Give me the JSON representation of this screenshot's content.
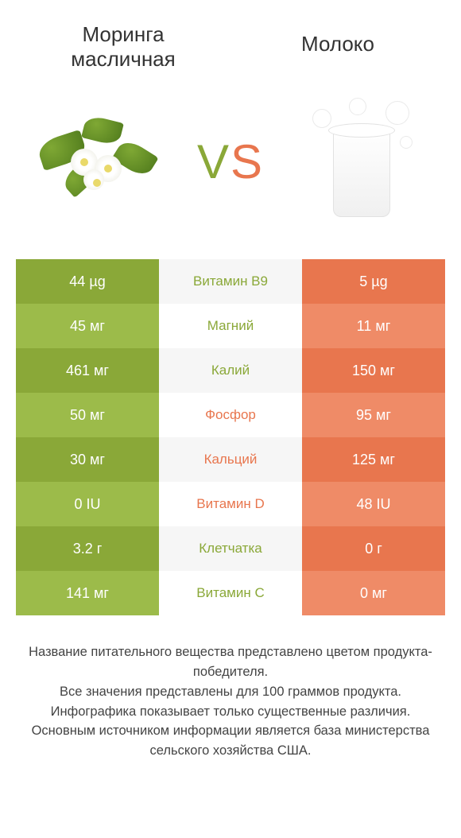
{
  "titles": {
    "left": "Моринга масличная",
    "right": "Молоко"
  },
  "vs": {
    "v": "V",
    "s": "S"
  },
  "colors": {
    "left_dark": "#8aa838",
    "left_light": "#9cbb4a",
    "right_dark": "#e8764e",
    "right_light": "#ef8b67",
    "mid_left_winner": "#8aa838",
    "mid_right_winner": "#e8764e"
  },
  "rows": [
    {
      "nutrient": "Витамин B9",
      "left": "44 µg",
      "right": "5 µg",
      "winner": "left"
    },
    {
      "nutrient": "Магний",
      "left": "45 мг",
      "right": "11 мг",
      "winner": "left"
    },
    {
      "nutrient": "Калий",
      "left": "461 мг",
      "right": "150 мг",
      "winner": "left"
    },
    {
      "nutrient": "Фосфор",
      "left": "50 мг",
      "right": "95 мг",
      "winner": "right"
    },
    {
      "nutrient": "Кальций",
      "left": "30 мг",
      "right": "125 мг",
      "winner": "right"
    },
    {
      "nutrient": "Витамин D",
      "left": "0 IU",
      "right": "48 IU",
      "winner": "right"
    },
    {
      "nutrient": "Клетчатка",
      "left": "3.2 г",
      "right": "0 г",
      "winner": "left"
    },
    {
      "nutrient": "Витамин C",
      "left": "141 мг",
      "right": "0 мг",
      "winner": "left"
    }
  ],
  "footer": {
    "l1": "Название питательного вещества представлено цветом продукта-победителя.",
    "l2": "Все значения представлены для 100 граммов продукта.",
    "l3": "Инфографика показывает только существенные различия.",
    "l4": "Основным источником информации является база министерства сельского хозяйства США."
  }
}
